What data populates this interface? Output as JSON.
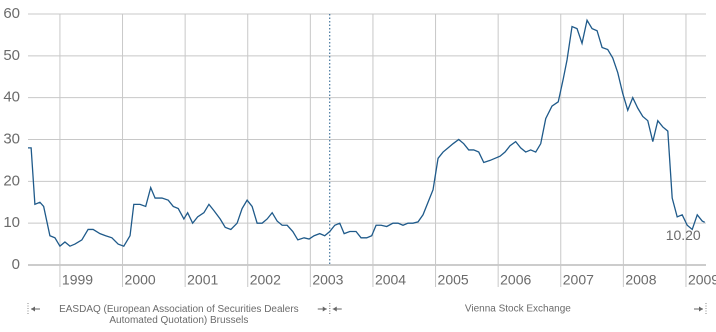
{
  "chart_data": {
    "type": "line",
    "color": "#1f5a8a",
    "x": [
      1998.49,
      1998.54,
      1998.6,
      1998.68,
      1998.74,
      1998.84,
      1998.92,
      1999.0,
      1999.08,
      1999.16,
      1999.24,
      1999.35,
      1999.45,
      1999.53,
      1999.64,
      1999.73,
      1999.83,
      1999.93,
      2000.02,
      2000.12,
      2000.18,
      2000.28,
      2000.37,
      2000.45,
      2000.52,
      2000.63,
      2000.73,
      2000.81,
      2000.89,
      2000.98,
      2001.04,
      2001.12,
      2001.2,
      2001.3,
      2001.38,
      2001.46,
      2001.56,
      2001.64,
      2001.73,
      2001.83,
      2001.91,
      2001.99,
      2002.07,
      2002.15,
      2002.23,
      2002.31,
      2002.39,
      2002.47,
      2002.55,
      2002.63,
      2002.72,
      2002.8,
      2002.9,
      2002.98,
      2003.06,
      2003.15,
      2003.23,
      2003.31,
      2003.39,
      2003.47,
      2003.54,
      2003.63,
      2003.73,
      2003.81,
      2003.9,
      2003.98,
      2004.05,
      2004.13,
      2004.22,
      2004.32,
      2004.4,
      2004.48,
      2004.56,
      2004.64,
      2004.72,
      2004.8,
      2004.88,
      2004.96,
      2005.04,
      2005.12,
      2005.2,
      2005.28,
      2005.37,
      2005.45,
      2005.53,
      2005.61,
      2005.69,
      2005.77,
      2005.87,
      2005.95,
      2006.03,
      2006.11,
      2006.19,
      2006.28,
      2006.36,
      2006.44,
      2006.52,
      2006.6,
      2006.68,
      2006.76,
      2006.86,
      2006.96,
      2007.04,
      2007.1,
      2007.18,
      2007.26,
      2007.34,
      2007.42,
      2007.5,
      2007.58,
      2007.66,
      2007.75,
      2007.83,
      2007.91,
      2007.99,
      2008.07,
      2008.15,
      2008.23,
      2008.31,
      2008.39,
      2008.47,
      2008.55,
      2008.63,
      2008.71,
      2008.78,
      2008.86,
      2008.94,
      2009.02,
      2009.1,
      2009.18,
      2009.26,
      2009.3
    ],
    "values": [
      28,
      28,
      14.5,
      15,
      14,
      7,
      6.5,
      4.5,
      5.5,
      4.5,
      5,
      6,
      8.5,
      8.5,
      7.5,
      7,
      6.5,
      5,
      4.5,
      7,
      14.5,
      14.5,
      14,
      18.5,
      16,
      16,
      15.5,
      14,
      13.5,
      11,
      12.5,
      10,
      11.5,
      12.5,
      14.5,
      13,
      11,
      9,
      8.5,
      10,
      13.5,
      15.5,
      14,
      10,
      10,
      11,
      12.5,
      10.5,
      9.5,
      9.5,
      8,
      6,
      6.5,
      6.2,
      7,
      7.5,
      7,
      8,
      9.5,
      10,
      7.5,
      8,
      8,
      6.5,
      6.5,
      7,
      9.5,
      9.5,
      9.2,
      10,
      10,
      9.5,
      10,
      10,
      10.3,
      12,
      15,
      18,
      25.5,
      27,
      28,
      29,
      30,
      29,
      27.5,
      27.5,
      27,
      24.5,
      25,
      25.5,
      26,
      27,
      28.5,
      29.5,
      28,
      27,
      27.5,
      27,
      29,
      35,
      38,
      39,
      44.5,
      49,
      57,
      56.5,
      53,
      58.5,
      56.5,
      56,
      52,
      51.5,
      49.5,
      46,
      41,
      37,
      40,
      37.5,
      35.5,
      34.5,
      29.5,
      34.5,
      33,
      32,
      16,
      11.5,
      12,
      9.5,
      8.5,
      12,
      10.5,
      10.2
    ],
    "annotation": "10.20",
    "marker_x": 2003.31,
    "xlim": [
      1998.49,
      2009.32
    ],
    "xticks": [
      1999,
      2000,
      2001,
      2002,
      2003,
      2004,
      2005,
      2006,
      2007,
      2008,
      2009
    ],
    "ylim": [
      0,
      60
    ],
    "yticks": [
      0,
      10,
      20,
      30,
      40,
      50,
      60
    ],
    "grid": true,
    "periods": [
      {
        "label": [
          "EASDAQ (European Association of Securities Dealers",
          "Automated Quotation) Brussels"
        ],
        "start": 1998.49,
        "end": 2003.31
      },
      {
        "label": [
          "Vienna Stock Exchange"
        ],
        "start": 2003.31,
        "end": 2009.32
      }
    ]
  }
}
